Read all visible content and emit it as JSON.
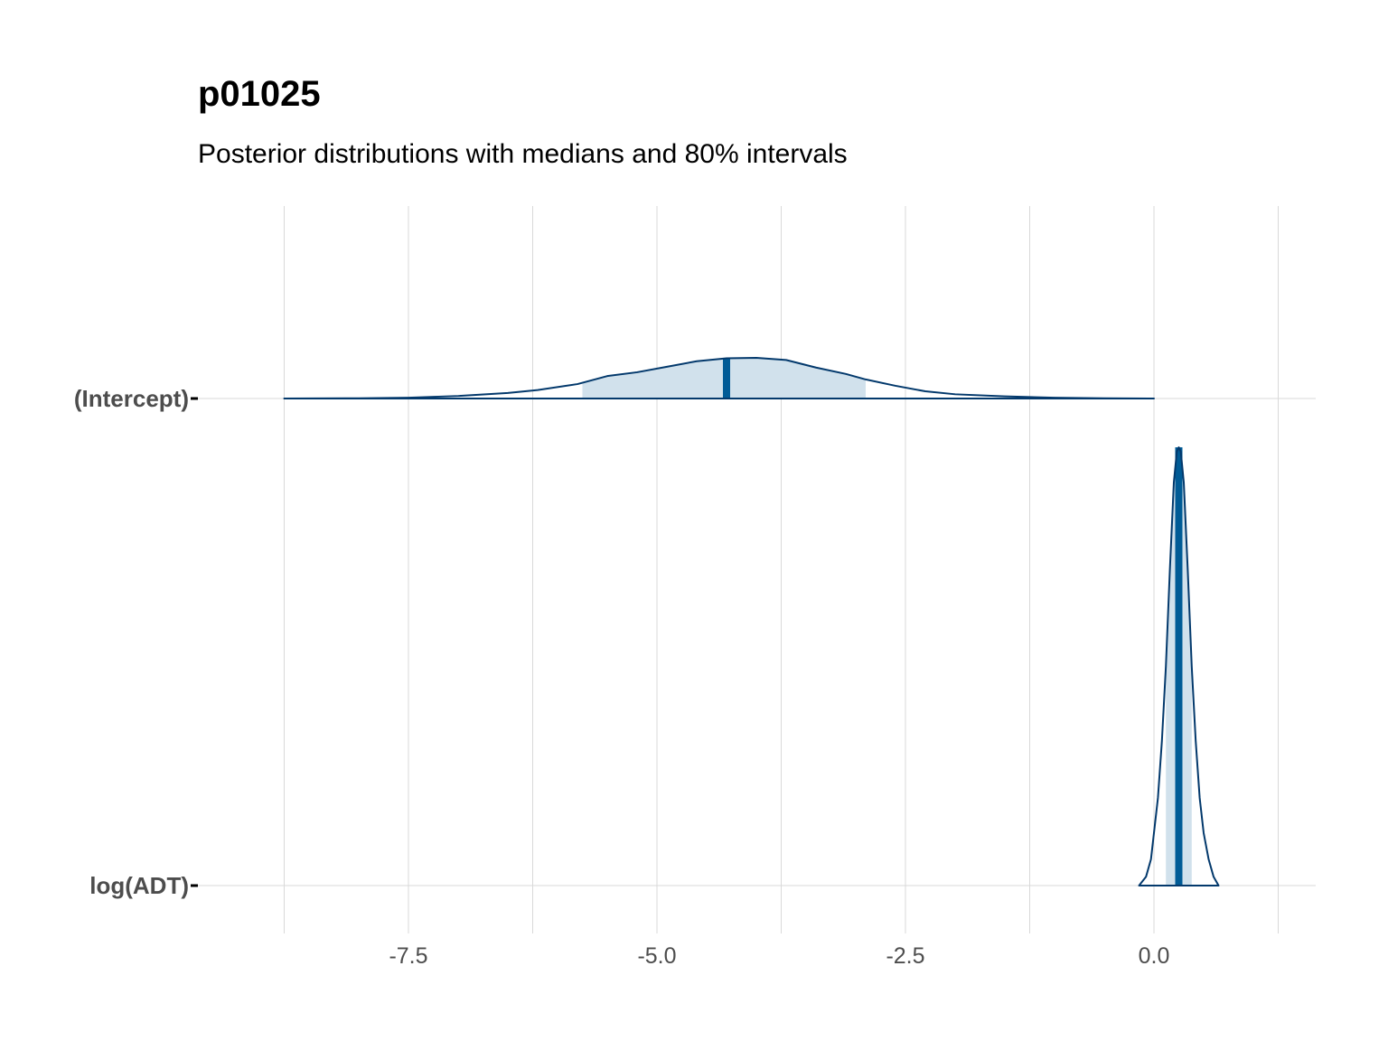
{
  "chart_data": {
    "type": "area",
    "title": "p01025",
    "subtitle": "Posterior distributions with medians and 80% intervals",
    "xlabel": "",
    "ylabel": "",
    "xlim": [
      -9.2,
      1.65
    ],
    "x_ticks": [
      -7.5,
      -5.0,
      -2.5,
      0.0
    ],
    "x_tick_labels": [
      "-7.5",
      "-5.0",
      "-2.5",
      "0.0"
    ],
    "categories": [
      "(Intercept)",
      "log(ADT)"
    ],
    "grid": true,
    "legend": "none",
    "colors": {
      "fill": "#d1e1ec",
      "line": "#03396c",
      "median": "#005b96",
      "grid": "#d9d9d9",
      "tick": "#4d4d4d"
    },
    "series": [
      {
        "name": "(Intercept)",
        "median": -4.3,
        "interval_80": [
          -5.75,
          -2.9
        ],
        "density": {
          "x": [
            -8.75,
            -8.0,
            -7.5,
            -7.0,
            -6.5,
            -6.2,
            -5.8,
            -5.5,
            -5.2,
            -4.9,
            -4.6,
            -4.3,
            -4.0,
            -3.7,
            -3.4,
            -3.1,
            -2.9,
            -2.6,
            -2.3,
            -2.0,
            -1.5,
            -1.0,
            -0.5,
            0.0
          ],
          "y": [
            0.0,
            0.005,
            0.02,
            0.06,
            0.13,
            0.2,
            0.34,
            0.53,
            0.62,
            0.75,
            0.88,
            0.95,
            0.96,
            0.91,
            0.73,
            0.58,
            0.45,
            0.3,
            0.17,
            0.1,
            0.05,
            0.02,
            0.005,
            0.0
          ]
        }
      },
      {
        "name": "log(ADT)",
        "median": 0.25,
        "interval_80": [
          0.12,
          0.38
        ],
        "density": {
          "x": [
            -0.15,
            -0.08,
            -0.03,
            0.0,
            0.04,
            0.08,
            0.12,
            0.16,
            0.2,
            0.23,
            0.25,
            0.27,
            0.3,
            0.34,
            0.38,
            0.42,
            0.46,
            0.5,
            0.55,
            0.6,
            0.65
          ],
          "y": [
            0.0,
            0.02,
            0.06,
            0.12,
            0.2,
            0.33,
            0.5,
            0.72,
            0.92,
            0.99,
            1.0,
            0.99,
            0.92,
            0.72,
            0.5,
            0.33,
            0.2,
            0.12,
            0.06,
            0.02,
            0.0
          ]
        }
      }
    ]
  }
}
